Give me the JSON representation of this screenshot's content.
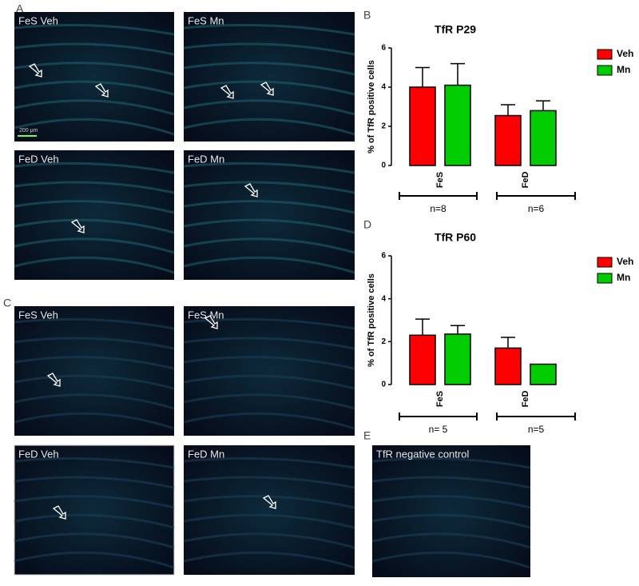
{
  "panel_labels": [
    "A",
    "B",
    "C",
    "D",
    "E"
  ],
  "images": [
    {
      "caption": "FeS Veh"
    },
    {
      "caption": "FeS Mn"
    },
    {
      "caption": "FeD Veh"
    },
    {
      "caption": "FeD Mn"
    },
    {
      "caption": "FeS Veh"
    },
    {
      "caption": "FeS Mn"
    },
    {
      "caption": "FeD Veh"
    },
    {
      "caption": "FeD Mn"
    },
    {
      "caption": "TfR negative control"
    }
  ],
  "scale_bar": "200 μm",
  "chart_data": [
    {
      "type": "bar",
      "title": "TfR P29",
      "y_label": "% of TfR positive cells",
      "categories": [
        "FeS",
        "FeD"
      ],
      "group_labels": [
        "n=8",
        "n=6"
      ],
      "series": [
        {
          "name": "Veh",
          "color": "#ff0000",
          "values": [
            4.0,
            2.55
          ],
          "errors": [
            1.0,
            0.55
          ]
        },
        {
          "name": "Mn",
          "color": "#00cc00",
          "values": [
            4.1,
            2.8
          ],
          "errors": [
            1.1,
            0.5
          ]
        }
      ],
      "ylim": [
        0,
        6
      ],
      "yticks": [
        0,
        2,
        4,
        6
      ],
      "legend": "right"
    },
    {
      "type": "bar",
      "title": "TfR P60",
      "y_label": "% of TfR positive cells",
      "categories": [
        "FeS",
        "FeD"
      ],
      "group_labels": [
        "n= 5",
        "n=5"
      ],
      "series": [
        {
          "name": "Veh",
          "color": "#ff0000",
          "values": [
            2.3,
            1.7
          ],
          "errors": [
            0.75,
            0.5
          ]
        },
        {
          "name": "Mn",
          "color": "#00cc00",
          "values": [
            2.35,
            0.95
          ],
          "errors": [
            0.4,
            null
          ]
        }
      ],
      "ylim": [
        0,
        6
      ],
      "yticks": [
        0,
        2,
        4,
        6
      ],
      "legend": "right"
    }
  ]
}
